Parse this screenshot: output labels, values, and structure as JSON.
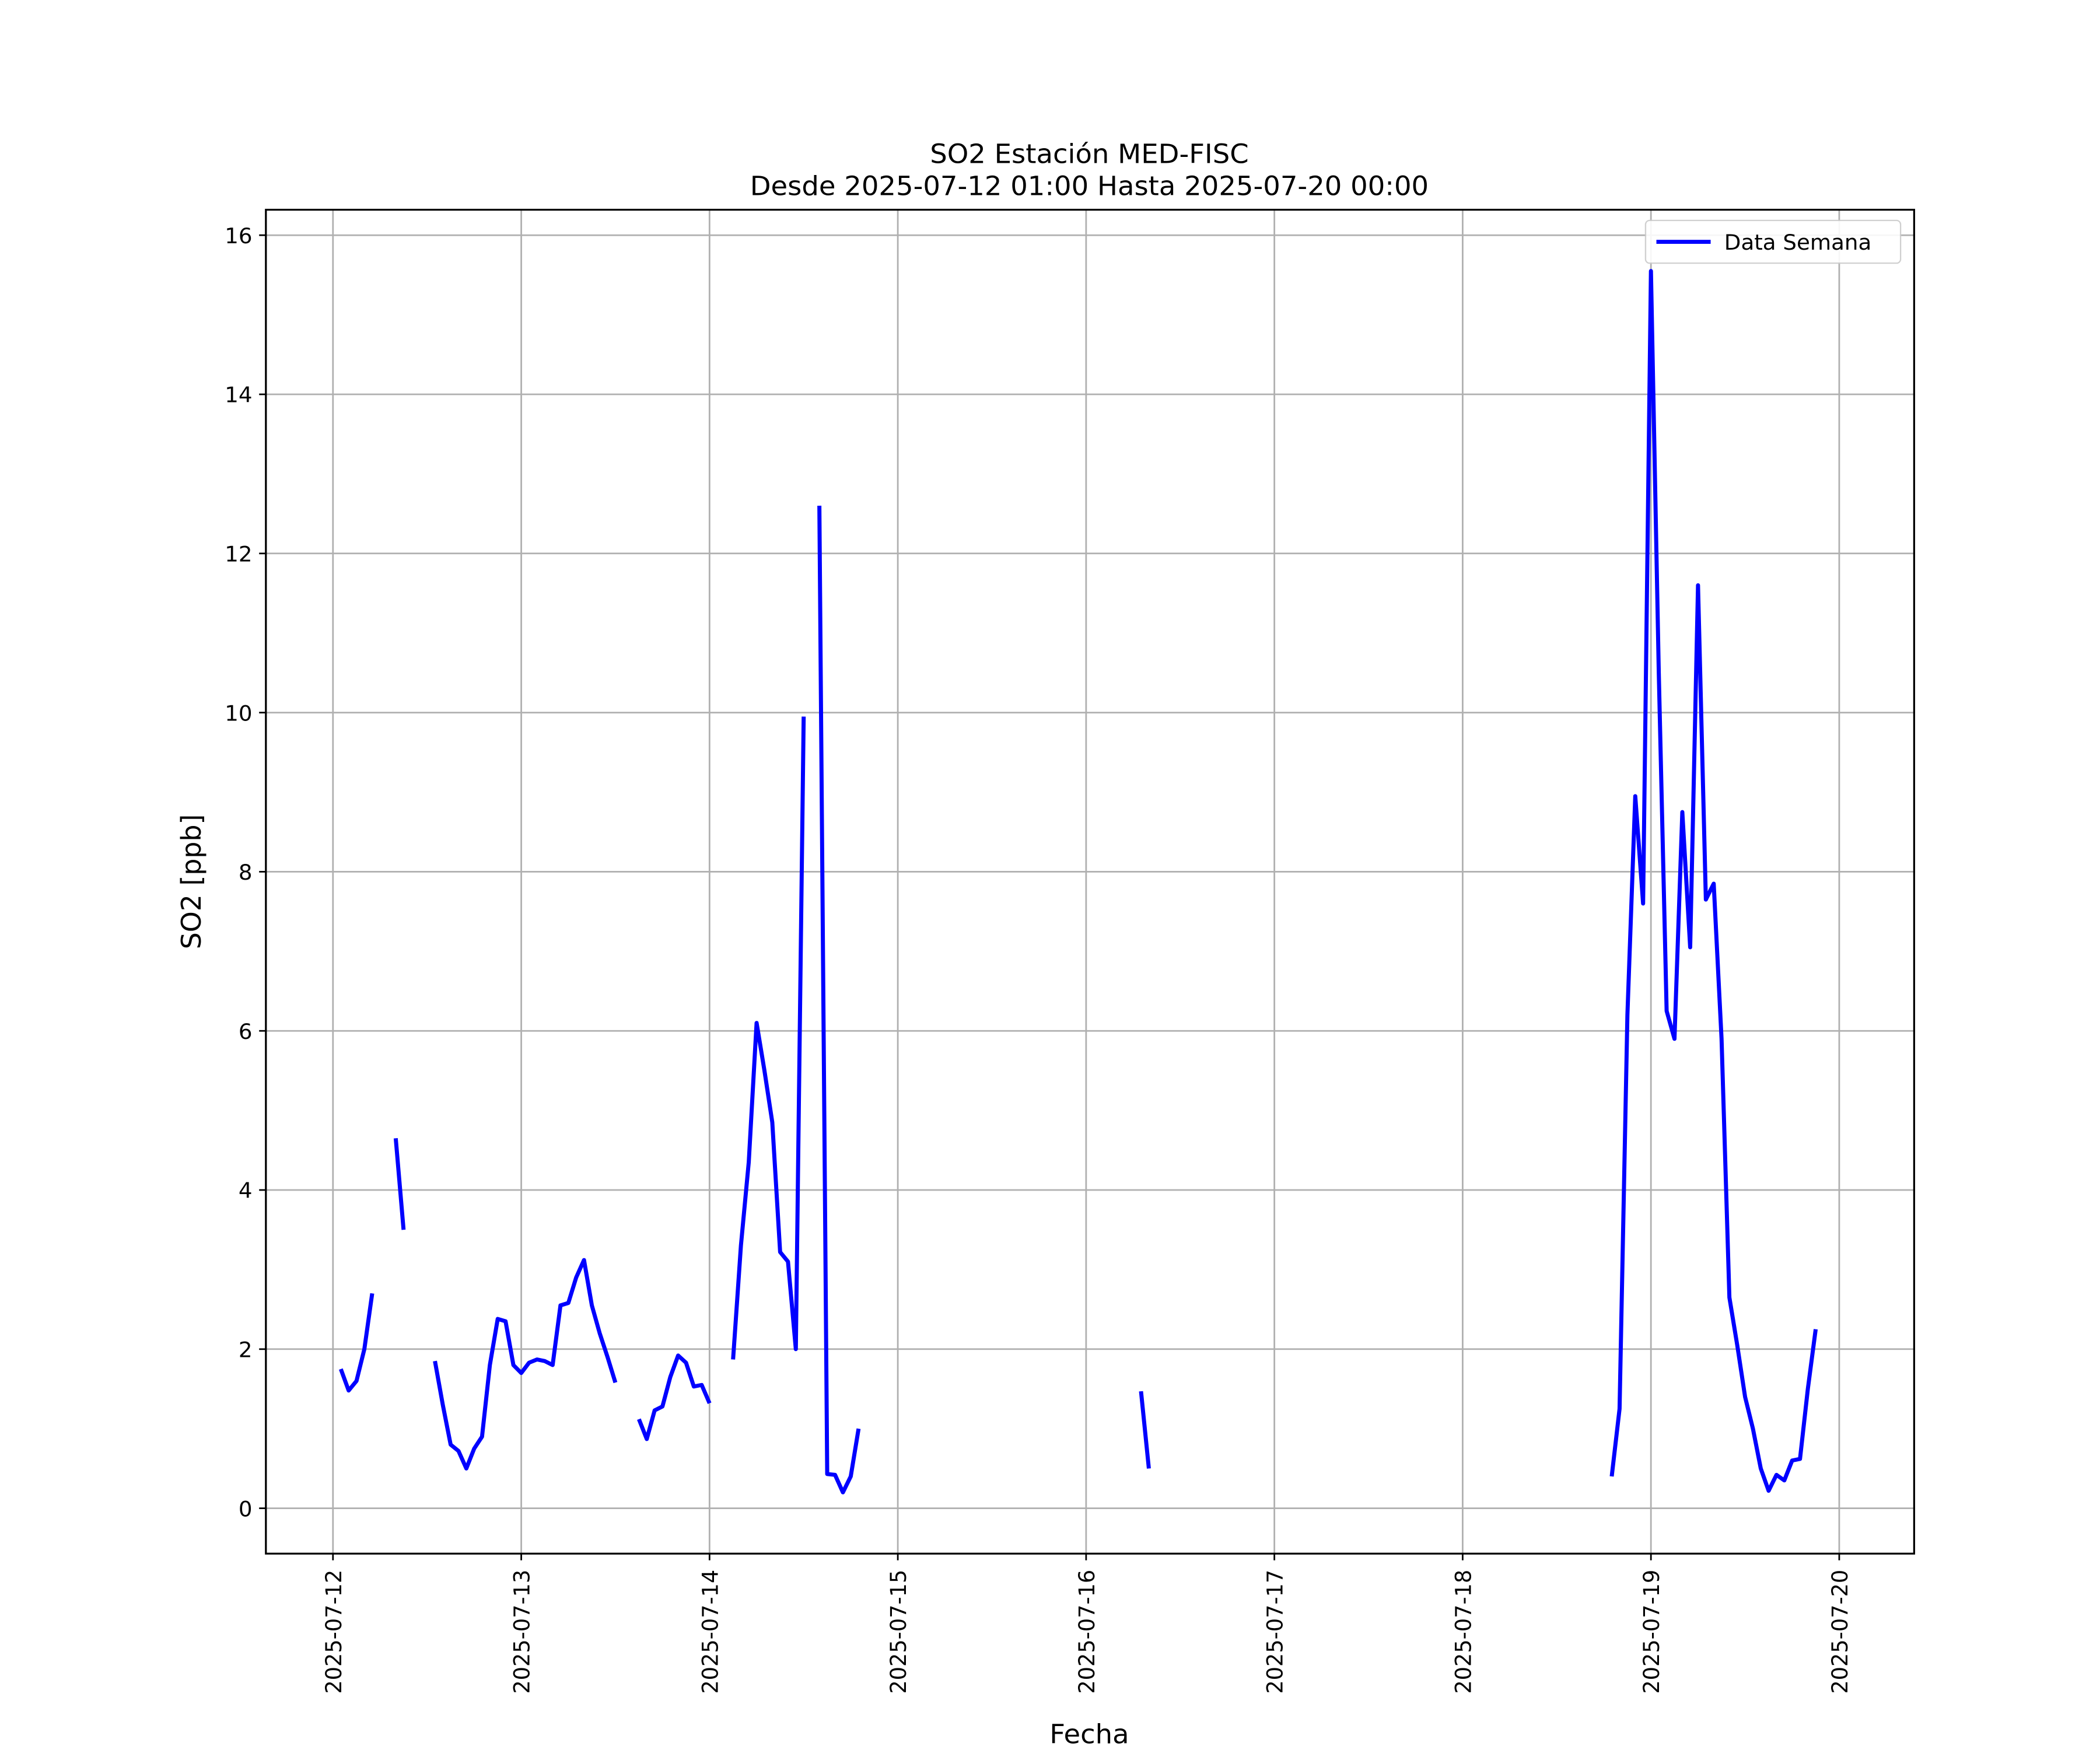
{
  "chart_data": {
    "type": "line",
    "title": "SO2 Estación MED-FISC",
    "subtitle": "Desde 2025-07-12 01:00 Hasta 2025-07-20 00:00",
    "x_label": "Fecha",
    "y_label": "SO2 [ppb]",
    "x": [
      "2025-07-12 01:00",
      "2025-07-12 02:00",
      "2025-07-12 03:00",
      "2025-07-12 04:00",
      "2025-07-12 05:00",
      "2025-07-12 06:00",
      "2025-07-12 08:00",
      "2025-07-12 09:00",
      "2025-07-12 10:00",
      "2025-07-12 13:00",
      "2025-07-12 14:00",
      "2025-07-12 15:00",
      "2025-07-12 16:00",
      "2025-07-12 17:00",
      "2025-07-12 18:00",
      "2025-07-12 19:00",
      "2025-07-12 20:00",
      "2025-07-12 21:00",
      "2025-07-12 22:00",
      "2025-07-12 23:00",
      "2025-07-13 00:00",
      "2025-07-13 01:00",
      "2025-07-13 02:00",
      "2025-07-13 03:00",
      "2025-07-13 04:00",
      "2025-07-13 05:00",
      "2025-07-13 06:00",
      "2025-07-13 07:00",
      "2025-07-13 08:00",
      "2025-07-13 09:00",
      "2025-07-13 10:00",
      "2025-07-13 11:00",
      "2025-07-13 12:00",
      "2025-07-13 13:00",
      "2025-07-13 15:00",
      "2025-07-13 16:00",
      "2025-07-13 17:00",
      "2025-07-13 18:00",
      "2025-07-13 19:00",
      "2025-07-13 20:00",
      "2025-07-13 21:00",
      "2025-07-13 22:00",
      "2025-07-13 23:00",
      "2025-07-14 00:00",
      "2025-07-14 01:00",
      "2025-07-14 03:00",
      "2025-07-14 04:00",
      "2025-07-14 05:00",
      "2025-07-14 06:00",
      "2025-07-14 07:00",
      "2025-07-14 08:00",
      "2025-07-14 09:00",
      "2025-07-14 10:00",
      "2025-07-14 11:00",
      "2025-07-14 12:00",
      "2025-07-14 13:00",
      "2025-07-14 14:00",
      "2025-07-14 15:00",
      "2025-07-14 16:00",
      "2025-07-14 17:00",
      "2025-07-14 18:00",
      "2025-07-14 19:00",
      "2025-07-14 20:00",
      "2025-07-16 07:00",
      "2025-07-16 08:00",
      "2025-07-16 09:00",
      "2025-07-18 19:00",
      "2025-07-18 20:00",
      "2025-07-18 21:00",
      "2025-07-18 22:00",
      "2025-07-18 23:00",
      "2025-07-19 00:00",
      "2025-07-19 01:00",
      "2025-07-19 02:00",
      "2025-07-19 03:00",
      "2025-07-19 04:00",
      "2025-07-19 05:00",
      "2025-07-19 06:00",
      "2025-07-19 07:00",
      "2025-07-19 08:00",
      "2025-07-19 09:00",
      "2025-07-19 10:00",
      "2025-07-19 11:00",
      "2025-07-19 12:00",
      "2025-07-19 13:00",
      "2025-07-19 14:00",
      "2025-07-19 15:00",
      "2025-07-19 16:00",
      "2025-07-19 17:00",
      "2025-07-19 18:00",
      "2025-07-19 19:00",
      "2025-07-19 20:00",
      "2025-07-19 21:00",
      "2025-07-20 00:00"
    ],
    "series": [
      {
        "name": "Data Semana",
        "color": "#0000ff",
        "values": [
          1.75,
          1.48,
          1.6,
          2.0,
          2.7,
          null,
          4.65,
          3.5,
          null,
          1.85,
          1.3,
          0.8,
          0.72,
          0.5,
          0.75,
          0.9,
          1.8,
          2.38,
          2.35,
          1.8,
          1.7,
          1.83,
          1.87,
          1.85,
          1.8,
          2.55,
          2.58,
          2.9,
          3.12,
          2.55,
          2.2,
          1.9,
          1.58,
          null,
          1.12,
          0.87,
          1.23,
          1.28,
          1.65,
          1.92,
          1.83,
          1.53,
          1.55,
          1.32,
          null,
          1.87,
          3.3,
          4.35,
          6.1,
          5.5,
          4.85,
          3.22,
          3.1,
          2.0,
          9.95,
          null,
          12.6,
          0.43,
          0.42,
          0.2,
          0.4,
          1.0,
          null,
          1.47,
          0.5,
          null,
          0.4,
          1.25,
          6.2,
          8.95,
          7.6,
          15.55,
          10.5,
          6.25,
          5.9,
          8.75,
          7.05,
          11.6,
          7.65,
          7.85,
          5.9,
          2.65,
          2.05,
          1.4,
          1.0,
          0.5,
          0.22,
          0.42,
          0.35,
          0.6,
          0.62,
          1.5,
          2.25,
          null
        ]
      }
    ],
    "xlim": [
      "2025-07-11 15:27",
      "2025-07-20 09:33"
    ],
    "xticks": [
      "2025-07-12",
      "2025-07-13",
      "2025-07-14",
      "2025-07-15",
      "2025-07-16",
      "2025-07-17",
      "2025-07-18",
      "2025-07-19",
      "2025-07-20"
    ],
    "ylim": [
      -0.57,
      16.32
    ],
    "yticks": [
      0,
      2,
      4,
      6,
      8,
      10,
      12,
      14,
      16
    ],
    "grid": true,
    "legend": "upper right"
  }
}
